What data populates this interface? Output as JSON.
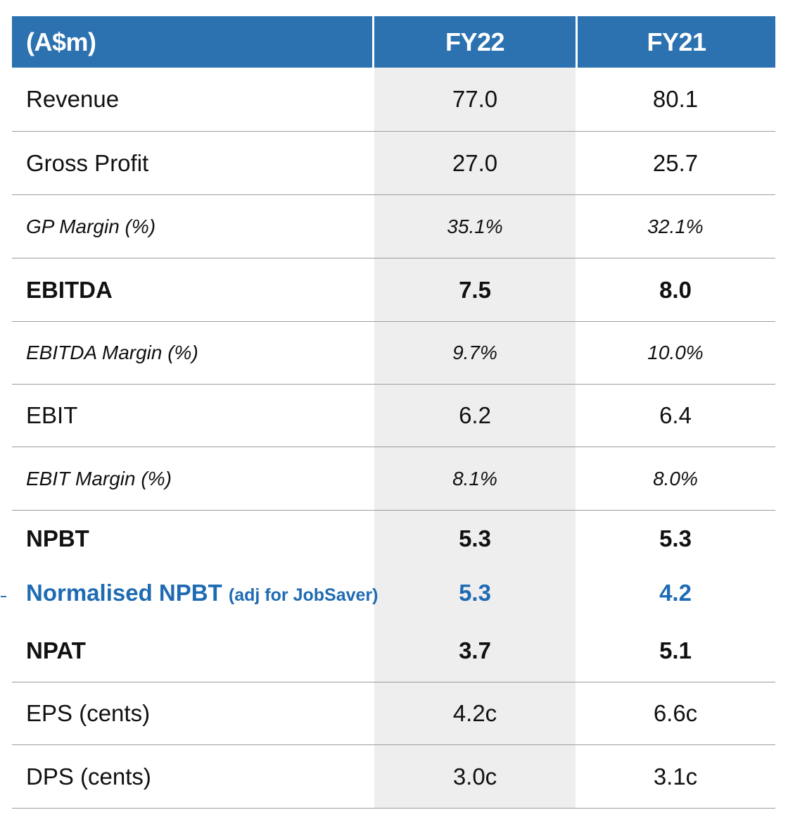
{
  "table": {
    "header": {
      "label": "(A$m)",
      "col1": "FY22",
      "col2": "FY21"
    },
    "rows": [
      {
        "label": "Revenue",
        "fy22": "77.0",
        "fy21": "80.1",
        "style": "normal"
      },
      {
        "label": "Gross Profit",
        "fy22": "27.0",
        "fy21": "25.7",
        "style": "normal"
      },
      {
        "label": "GP Margin (%)",
        "fy22": "35.1%",
        "fy21": "32.1%",
        "style": "italic"
      },
      {
        "label": "EBITDA",
        "fy22": "7.5",
        "fy21": "8.0",
        "style": "bold"
      },
      {
        "label": "EBITDA Margin (%)",
        "fy22": "9.7%",
        "fy21": "10.0%",
        "style": "italic"
      },
      {
        "label": "EBIT",
        "fy22": "6.2",
        "fy21": "6.4",
        "style": "normal"
      },
      {
        "label": "EBIT Margin (%)",
        "fy22": "8.1%",
        "fy21": "8.0%",
        "style": "italic"
      },
      {
        "label": "NPBT",
        "fy22": "5.3",
        "fy21": "5.3",
        "style": "bold"
      },
      {
        "label": "Normalised NPBT",
        "note": "(adj for JobSaver)",
        "fy22": "5.3",
        "fy21": "4.2",
        "style": "highlight"
      },
      {
        "label": "NPAT",
        "fy22": "3.7",
        "fy21": "5.1",
        "style": "bold"
      },
      {
        "label": "EPS (cents)",
        "fy22": "4.2c",
        "fy21": "6.6c",
        "style": "normal"
      },
      {
        "label": "DPS (cents)",
        "fy22": "3.0c",
        "fy21": "3.1c",
        "style": "normal"
      }
    ]
  },
  "colors": {
    "header_bg": "#2c72b0",
    "highlight_text": "#1f6bb3",
    "shaded_column": "#eeeeee",
    "divider": "#9c9c9c"
  }
}
